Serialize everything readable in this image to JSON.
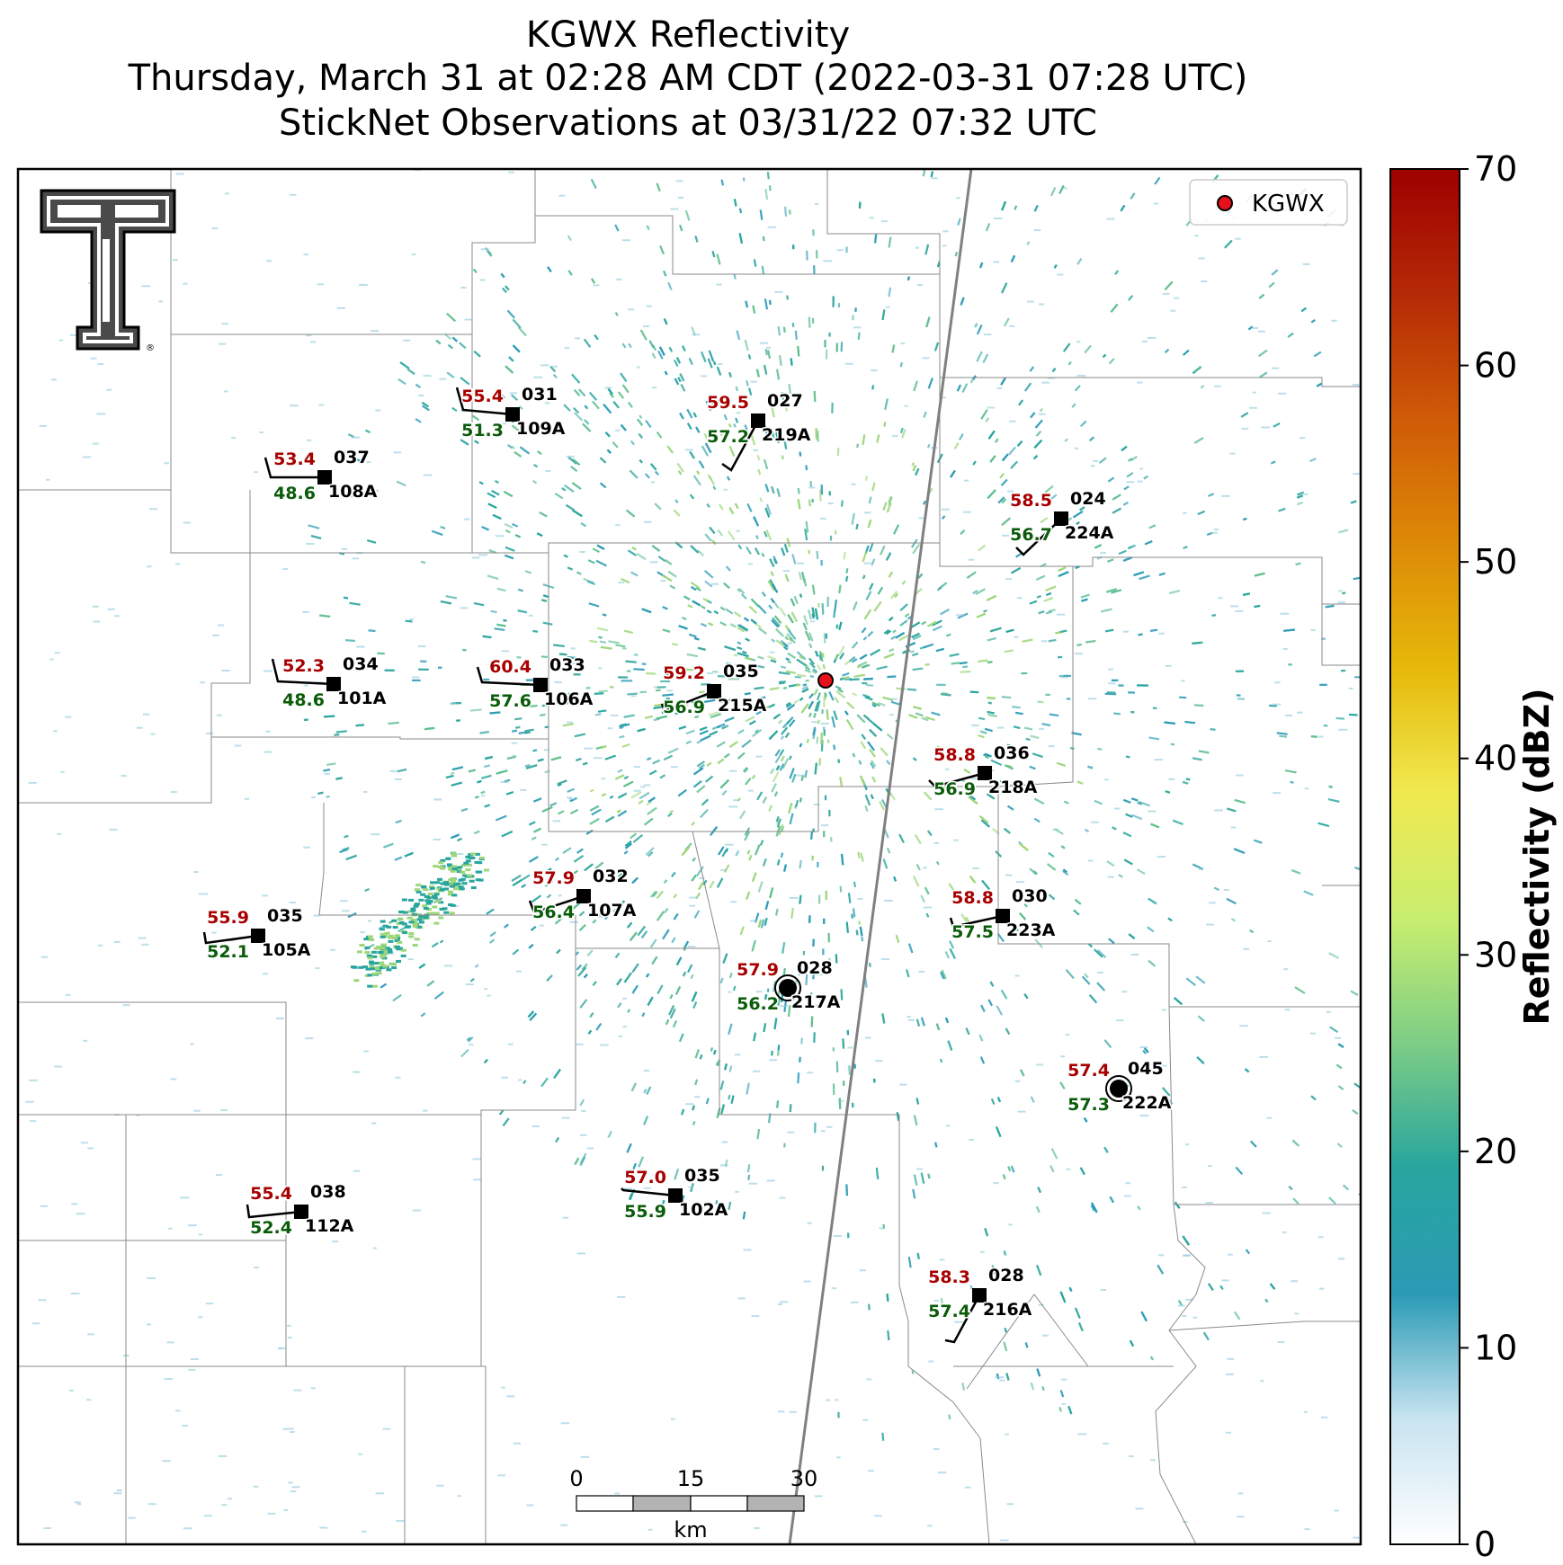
{
  "title": {
    "line1": "KGWX Reflectivity",
    "line2": "Thursday, March 31 at 02:28 AM CDT (2022-03-31 07:28 UTC)",
    "line3": "StickNet Observations at 03/31/22 07:32 UTC"
  },
  "legend": {
    "label": "KGWX",
    "marker_color": "#e8101a"
  },
  "colorbar": {
    "label": "Reflectivity (dBZ)",
    "ticks": [
      "0",
      "10",
      "20",
      "30",
      "40",
      "50",
      "60",
      "70"
    ],
    "min": 0,
    "max": 70,
    "colors": [
      "#ffffff",
      "#c9e4f1",
      "#2b9bb5",
      "#27a59e",
      "#7ccd86",
      "#c8ee6f",
      "#f0ea51",
      "#e6b90a",
      "#dd8a07",
      "#cf5b07",
      "#b52a06",
      "#9e0000"
    ]
  },
  "scalebar": {
    "ticks": [
      "0",
      "15",
      "30"
    ],
    "unit": "km"
  },
  "logo": {
    "name": "Texas Tech double-T logo"
  },
  "colors": {
    "temperature": "#a80000",
    "dewpoint": "#0a5b0a",
    "station": "#000000"
  },
  "stations": [
    {
      "id": "109A",
      "temp": "55.4",
      "dew": "51.3",
      "pres": "031"
    },
    {
      "id": "219A",
      "temp": "59.5",
      "dew": "57.2",
      "pres": "027"
    },
    {
      "id": "108A",
      "temp": "53.4",
      "dew": "48.6",
      "pres": "037"
    },
    {
      "id": "224A",
      "temp": "58.5",
      "dew": "56.7",
      "pres": "024"
    },
    {
      "id": "101A",
      "temp": "52.3",
      "dew": "48.6",
      "pres": "034"
    },
    {
      "id": "106A",
      "temp": "60.4",
      "dew": "57.6",
      "pres": "033"
    },
    {
      "id": "215A",
      "temp": "59.2",
      "dew": "56.9",
      "pres": "035"
    },
    {
      "id": "218A",
      "temp": "58.8",
      "dew": "56.9",
      "pres": "036"
    },
    {
      "id": "107A",
      "temp": "57.9",
      "dew": "56.4",
      "pres": "032"
    },
    {
      "id": "105A",
      "temp": "55.9",
      "dew": "52.1",
      "pres": "035"
    },
    {
      "id": "223A",
      "temp": "58.8",
      "dew": "57.5",
      "pres": "030"
    },
    {
      "id": "217A",
      "temp": "57.9",
      "dew": "56.2",
      "pres": "028"
    },
    {
      "id": "222A",
      "temp": "57.4",
      "dew": "57.3",
      "pres": "045"
    },
    {
      "id": "112A",
      "temp": "55.4",
      "dew": "52.4",
      "pres": "038"
    },
    {
      "id": "102A",
      "temp": "57.0",
      "dew": "55.9",
      "pres": "035"
    },
    {
      "id": "216A",
      "temp": "58.3",
      "dew": "57.4",
      "pres": "028"
    }
  ]
}
